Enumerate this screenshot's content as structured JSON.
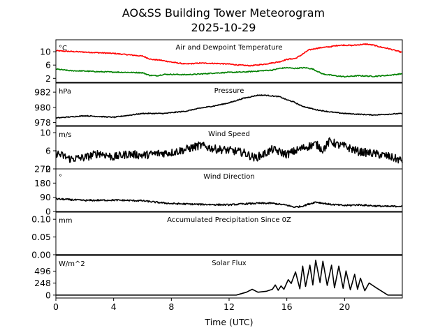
{
  "title_line1": "AO&SS Building Tower Meteorogram",
  "title_line2": "2025-10-29",
  "xlabel": "Time (UTC)",
  "colors": {
    "temperature": "#ff0000",
    "dewpoint": "#008000",
    "default": "#000000"
  },
  "chart_data": [
    {
      "type": "line",
      "title": "Air and Dewpoint Temperature",
      "unit": "°C",
      "ylim": [
        0.8,
        13.6
      ],
      "yticks": [
        2,
        6,
        10
      ],
      "series": [
        {
          "name": "Air Temperature",
          "color_key": "temperature",
          "x": [
            0,
            2,
            4,
            5,
            6,
            6.6,
            7.2,
            8,
            9,
            10,
            11,
            12,
            12.7,
            13.5,
            14.5,
            15.5,
            16,
            16.6,
            17,
            17.5,
            18,
            18.5,
            19,
            19.5,
            20,
            20.5,
            21,
            21.5,
            22,
            22.5,
            23,
            24
          ],
          "values": [
            10.3,
            9.9,
            9.5,
            9.1,
            8.7,
            7.7,
            7.5,
            6.9,
            6.3,
            6.6,
            6.5,
            6.3,
            6.0,
            5.8,
            6.3,
            7.0,
            7.7,
            8.0,
            9.0,
            10.5,
            11.0,
            11.3,
            11.5,
            11.9,
            12.0,
            11.9,
            12.1,
            12.3,
            12.0,
            11.4,
            11.0,
            9.8
          ]
        },
        {
          "name": "Dewpoint",
          "color_key": "dewpoint",
          "x": [
            0,
            1,
            2,
            3,
            4,
            5,
            6,
            6.5,
            7,
            7.5,
            8,
            9,
            10,
            11,
            12,
            13,
            14,
            15,
            15.5,
            16,
            16.5,
            17.3,
            17.8,
            18.5,
            19,
            19.5,
            20,
            21,
            22,
            23,
            24
          ],
          "values": [
            4.8,
            4.3,
            4.2,
            4.0,
            3.9,
            3.8,
            3.7,
            2.9,
            2.8,
            3.2,
            3.2,
            3.1,
            3.3,
            3.6,
            3.8,
            3.9,
            4.2,
            4.5,
            5.0,
            5.2,
            5.0,
            5.2,
            4.8,
            3.3,
            3.0,
            2.7,
            2.5,
            2.8,
            2.6,
            2.9,
            3.4
          ]
        }
      ]
    },
    {
      "type": "line",
      "title": "Pressure",
      "unit": "hPa",
      "ylim": [
        977.6,
        983.2
      ],
      "yticks": [
        978,
        980,
        982
      ],
      "series": [
        {
          "name": "Pressure",
          "color_key": "default",
          "x": [
            0,
            2,
            4,
            6,
            7.5,
            9,
            10,
            11,
            12,
            13,
            14,
            14.5,
            15,
            15.5,
            16,
            16.5,
            17,
            18,
            19,
            20,
            21,
            22,
            23,
            24
          ],
          "values": [
            978.6,
            978.9,
            978.7,
            979.2,
            979.2,
            979.5,
            979.9,
            980.2,
            980.6,
            981.2,
            981.6,
            981.6,
            981.5,
            981.4,
            981.0,
            980.7,
            980.2,
            979.7,
            979.4,
            979.2,
            979.1,
            979.0,
            979.1,
            979.2
          ]
        }
      ]
    },
    {
      "type": "line",
      "title": "Wind Speed",
      "unit": "m/s",
      "ylim": [
        2,
        11.4
      ],
      "yticks": [
        2,
        6,
        10
      ],
      "series": [
        {
          "name": "Wind Speed",
          "color_key": "default",
          "x": [
            0,
            1,
            2,
            3,
            4,
            5,
            6,
            7,
            8,
            9,
            10,
            11,
            12,
            13,
            13.8,
            14.5,
            15,
            16,
            17,
            18,
            18.5,
            19,
            19.5,
            20,
            21,
            22,
            23,
            24
          ],
          "values": [
            5.5,
            4.2,
            4.5,
            5.5,
            4.6,
            5.3,
            5.0,
            5.4,
            5.6,
            6.3,
            7.2,
            6.4,
            6.1,
            5.6,
            4.4,
            5.4,
            6.3,
            5.2,
            6.5,
            7.5,
            6.2,
            8.2,
            7.3,
            7.0,
            5.8,
            5.4,
            4.8,
            3.8
          ]
        }
      ]
    },
    {
      "type": "line",
      "title": "Wind Direction",
      "unit": "°",
      "ylim": [
        0,
        270
      ],
      "yticks": [
        0,
        90,
        180,
        270
      ],
      "series": [
        {
          "name": "Wind Direction",
          "color_key": "default",
          "x": [
            0,
            2,
            4,
            6,
            7,
            8,
            10,
            12,
            13,
            14,
            15,
            16,
            16.5,
            17,
            18,
            19,
            20,
            21,
            22,
            23,
            24
          ],
          "values": [
            80,
            70,
            72,
            68,
            58,
            50,
            45,
            42,
            48,
            52,
            52,
            40,
            28,
            32,
            60,
            45,
            38,
            42,
            36,
            32,
            34
          ]
        }
      ]
    },
    {
      "type": "line",
      "title": "Accumulated Precipitation Since 0Z",
      "unit": "mm",
      "ylim": [
        0,
        0.12
      ],
      "yticks": [
        0.0,
        0.05,
        0.1
      ],
      "ytick_labels": [
        "0.00",
        "0.05",
        "0.10"
      ],
      "series": [
        {
          "name": "Precipitation",
          "color_key": "default",
          "x": [
            0,
            24
          ],
          "values": [
            0,
            0
          ]
        }
      ]
    },
    {
      "type": "line",
      "title": "Solar Flux",
      "unit": "W/m^2",
      "ylim": [
        -60,
        820
      ],
      "yticks": [
        0,
        248,
        496
      ],
      "series": [
        {
          "name": "Solar Flux",
          "color_key": "default",
          "x": [
            0,
            12.5,
            13.2,
            13.6,
            14,
            14.6,
            15,
            15.2,
            15.4,
            15.6,
            15.8,
            16.1,
            16.3,
            16.6,
            16.9,
            17.1,
            17.3,
            17.6,
            17.8,
            18,
            18.3,
            18.5,
            18.8,
            19.1,
            19.3,
            19.6,
            19.9,
            20.1,
            20.4,
            20.7,
            20.9,
            21.1,
            21.4,
            21.7,
            22.2,
            23,
            24
          ],
          "values": [
            0,
            0,
            60,
            120,
            60,
            80,
            120,
            210,
            100,
            190,
            120,
            320,
            240,
            480,
            130,
            600,
            180,
            620,
            210,
            720,
            260,
            700,
            200,
            620,
            150,
            600,
            140,
            500,
            110,
            430,
            120,
            350,
            90,
            250,
            150,
            0,
            0
          ]
        }
      ]
    }
  ]
}
